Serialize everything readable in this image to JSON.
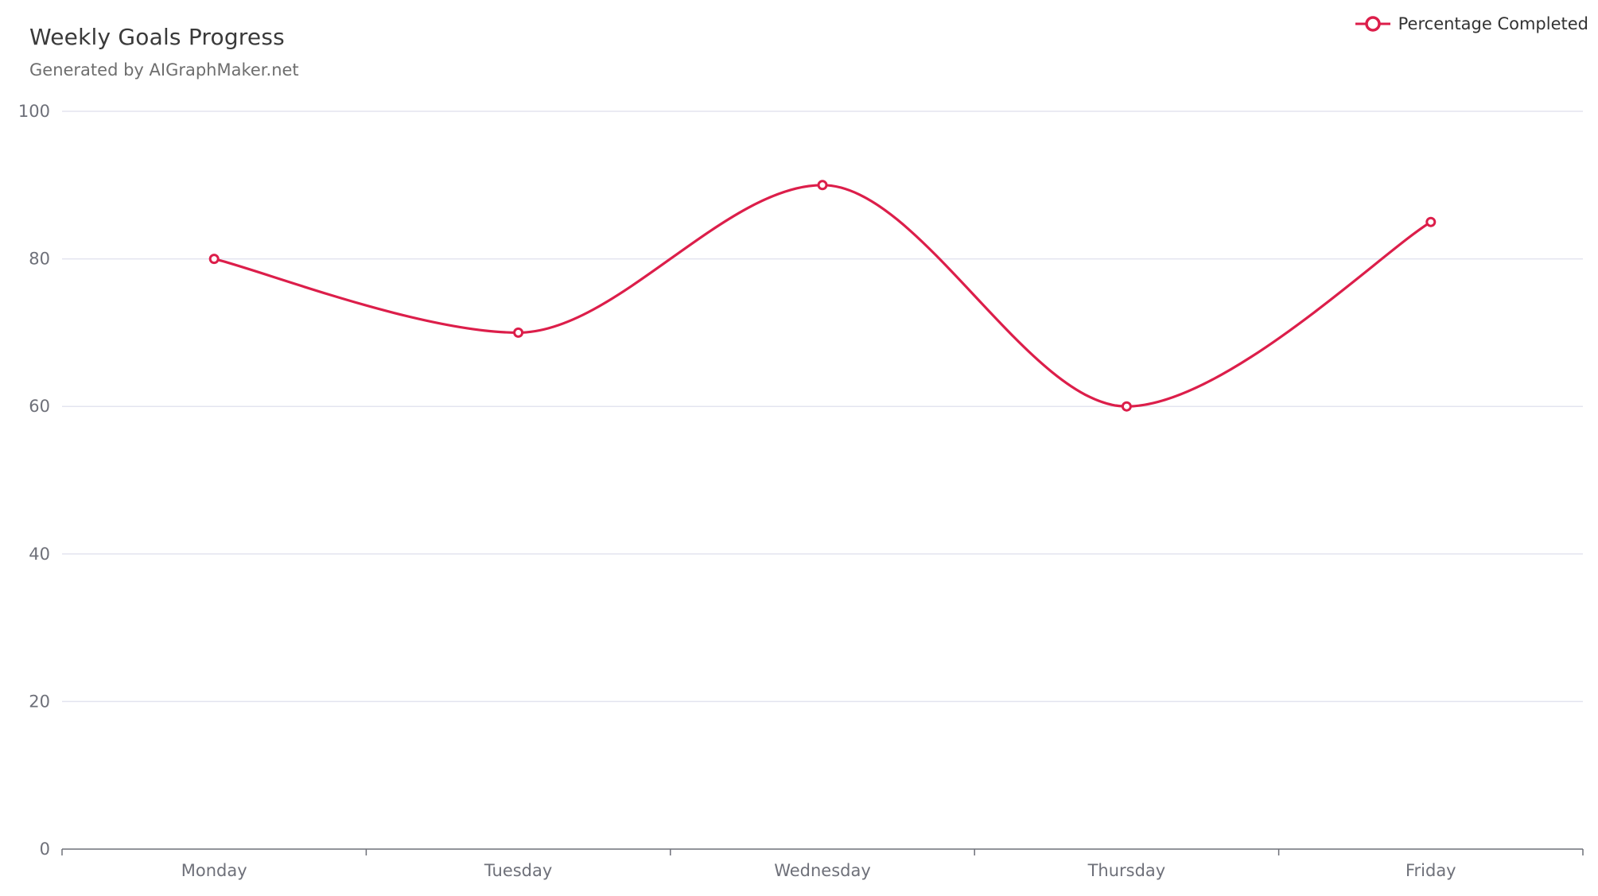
{
  "chart_data": {
    "type": "line",
    "title": "Weekly Goals Progress",
    "subtitle": "Generated by AIGraphMaker.net",
    "categories": [
      "Monday",
      "Tuesday",
      "Wednesday",
      "Thursday",
      "Friday"
    ],
    "series": [
      {
        "name": "Percentage Completed",
        "values": [
          80,
          70,
          90,
          60,
          85
        ],
        "color": "#dc1e4a"
      }
    ],
    "ylim": [
      0,
      100
    ],
    "yticks": [
      0,
      20,
      40,
      60,
      80,
      100
    ],
    "smooth": true,
    "grid": true,
    "legend_position": "top-right"
  },
  "colors": {
    "line": "#dc1e4a",
    "grid": "#e3e4ef",
    "axis": "#6e7079",
    "tick_label": "#6e7079"
  }
}
